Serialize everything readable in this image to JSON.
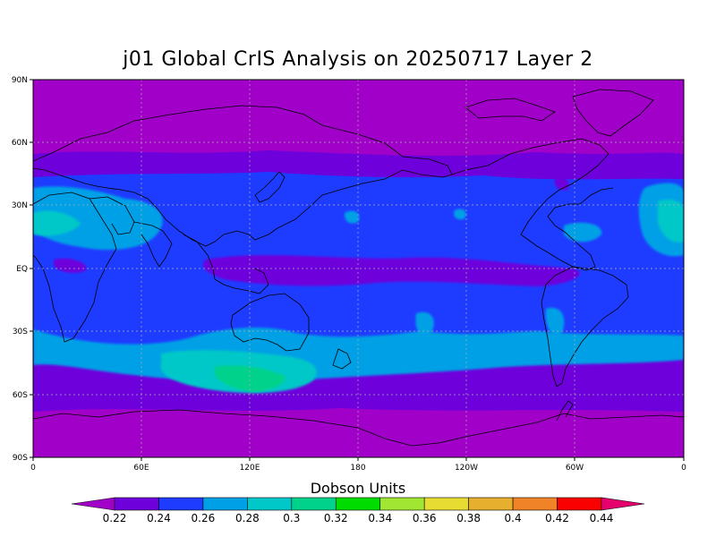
{
  "title": "j01 Global CrIS Analysis on 20250717 Layer 2",
  "colorbar": {
    "title": "Dobson Units",
    "labels": [
      "0.22",
      "0.24",
      "0.26",
      "0.28",
      "0.3",
      "0.32",
      "0.34",
      "0.36",
      "0.38",
      "0.4",
      "0.42",
      "0.44"
    ],
    "colors": [
      "#a000c8",
      "#6e00dc",
      "#1e3cff",
      "#00a0e6",
      "#00c8c8",
      "#00d28c",
      "#00dc00",
      "#a0e632",
      "#e6dc32",
      "#e6af2d",
      "#f08228",
      "#fa0000",
      "#e6006e"
    ]
  },
  "axes": {
    "lat_labels": [
      "90N",
      "60N",
      "30N",
      "EQ",
      "30S",
      "60S",
      "90S"
    ],
    "lon_labels": [
      "0",
      "60E",
      "120E",
      "180",
      "120W",
      "60W",
      "0"
    ]
  },
  "chart_data": {
    "type": "heatmap",
    "title": "j01 Global CrIS Analysis on 20250717 Layer 2",
    "units": "Dobson Units",
    "projection": "cylindrical equidistant",
    "lon_range": [
      0,
      360
    ],
    "lat_range": [
      -90,
      90
    ],
    "grid": true,
    "value_range": [
      0.22,
      0.44
    ],
    "zonal_bands": [
      {
        "lat": [
          60,
          90
        ],
        "value": 0.22
      },
      {
        "lat": [
          45,
          60
        ],
        "value": 0.23
      },
      {
        "lat": [
          -10,
          45
        ],
        "value": 0.25
      },
      {
        "lat": [
          -30,
          -10
        ],
        "value": 0.25
      },
      {
        "lat": [
          -50,
          -30
        ],
        "value": 0.27
      },
      {
        "lat": [
          -65,
          -50
        ],
        "value": 0.24
      },
      {
        "lat": [
          -90,
          -65
        ],
        "value": 0.22
      }
    ],
    "features": [
      {
        "region": "Southern Indian Ocean / S of Australia",
        "lon": [
          90,
          150
        ],
        "lat": [
          -58,
          -40
        ],
        "value": 0.29
      },
      {
        "region": "North Africa / Arabia",
        "lon": [
          0,
          60
        ],
        "lat": [
          10,
          35
        ],
        "value": 0.27
      },
      {
        "region": "Eastern Pacific (Mexico)",
        "lon": [
          230,
          245
        ],
        "lat": [
          15,
          25
        ],
        "value": 0.27
      },
      {
        "region": "North Atlantic subtropics",
        "lon": [
          330,
          360
        ],
        "lat": [
          10,
          35
        ],
        "value": 0.28
      },
      {
        "region": "Equatorial Pacific",
        "lon": [
          150,
          280
        ],
        "lat": [
          -10,
          10
        ],
        "value": 0.24
      },
      {
        "region": "Equatorial Africa",
        "lon": [
          10,
          40
        ],
        "lat": [
          -5,
          5
        ],
        "value": 0.24
      }
    ]
  }
}
